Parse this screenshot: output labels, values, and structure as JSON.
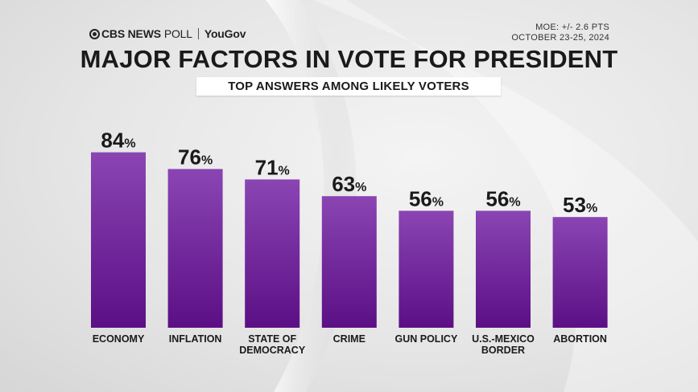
{
  "header": {
    "brand_network": "CBS NEWS",
    "brand_poll": "POLL",
    "brand_partner": "YouGov",
    "moe": "MOE: +/- 2.6 PTS",
    "dates": "OCTOBER 23-25, 2024"
  },
  "colors": {
    "bar_top": "#8a45b3",
    "bar_bottom": "#5c0f85"
  },
  "chart_data": {
    "type": "bar",
    "title": "MAJOR FACTORS IN VOTE FOR PRESIDENT",
    "subtitle": "TOP ANSWERS AMONG LIKELY VOTERS",
    "categories": [
      "ECONOMY",
      "INFLATION",
      "STATE OF DEMOCRACY",
      "CRIME",
      "GUN POLICY",
      "U.S.-MEXICO BORDER",
      "ABORTION"
    ],
    "category_lines": [
      [
        "ECONOMY"
      ],
      [
        "INFLATION"
      ],
      [
        "STATE OF",
        "DEMOCRACY"
      ],
      [
        "CRIME"
      ],
      [
        "GUN POLICY"
      ],
      [
        "U.S.-MEXICO",
        "BORDER"
      ],
      [
        "ABORTION"
      ]
    ],
    "values": [
      84,
      76,
      71,
      63,
      56,
      56,
      53
    ],
    "value_suffix": "%",
    "ylim": [
      0,
      100
    ]
  }
}
